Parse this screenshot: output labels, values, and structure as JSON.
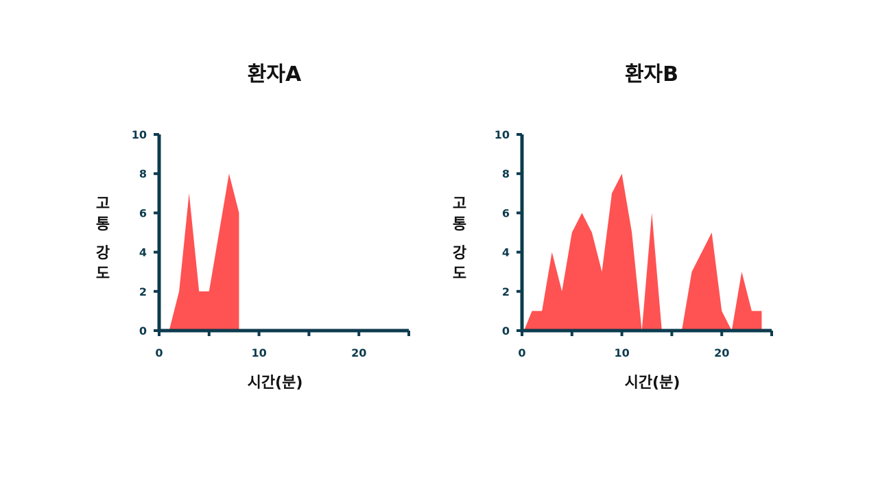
{
  "chart_data": [
    {
      "type": "area",
      "title": "환자A",
      "xlabel": "시간(분)",
      "ylabel": "고통 강도",
      "ylabel_lines": [
        "고",
        "통",
        "강",
        "도"
      ],
      "xlim": [
        0,
        25
      ],
      "ylim": [
        0,
        10
      ],
      "xticks": [
        0,
        5,
        10,
        15,
        20,
        25
      ],
      "xtick_labels": [
        "0",
        "",
        "10",
        "",
        "20",
        ""
      ],
      "yticks": [
        0,
        2,
        4,
        6,
        8,
        10
      ],
      "ytick_labels": [
        "0",
        "2",
        "4",
        "6",
        "8",
        "10"
      ],
      "grid": false,
      "color": "#ff5252",
      "x": [
        1,
        2,
        3,
        4,
        5,
        7,
        8,
        8
      ],
      "y": [
        0,
        2,
        7,
        2,
        2,
        8,
        6,
        0
      ]
    },
    {
      "type": "area",
      "title": "환자B",
      "xlabel": "시간(분)",
      "ylabel": "고통 강도",
      "ylabel_lines": [
        "고",
        "통",
        "강",
        "도"
      ],
      "xlim": [
        0,
        25
      ],
      "ylim": [
        0,
        10
      ],
      "xticks": [
        0,
        5,
        10,
        15,
        20,
        25
      ],
      "xtick_labels": [
        "0",
        "",
        "10",
        "",
        "20",
        ""
      ],
      "yticks": [
        0,
        2,
        4,
        6,
        8,
        10
      ],
      "ytick_labels": [
        "0",
        "2",
        "4",
        "6",
        "8",
        "10"
      ],
      "grid": false,
      "color": "#ff5252",
      "x": [
        0.2,
        1,
        2,
        3,
        4,
        5,
        6,
        7,
        8,
        9,
        10,
        11,
        12,
        13,
        14,
        16,
        17,
        19,
        20,
        21,
        22,
        23,
        24,
        24
      ],
      "y": [
        0,
        1,
        1,
        4,
        2,
        5,
        6,
        5,
        3,
        7,
        8,
        5,
        0,
        6,
        0,
        0,
        3,
        5,
        1,
        0,
        3,
        1,
        1,
        0
      ]
    }
  ]
}
